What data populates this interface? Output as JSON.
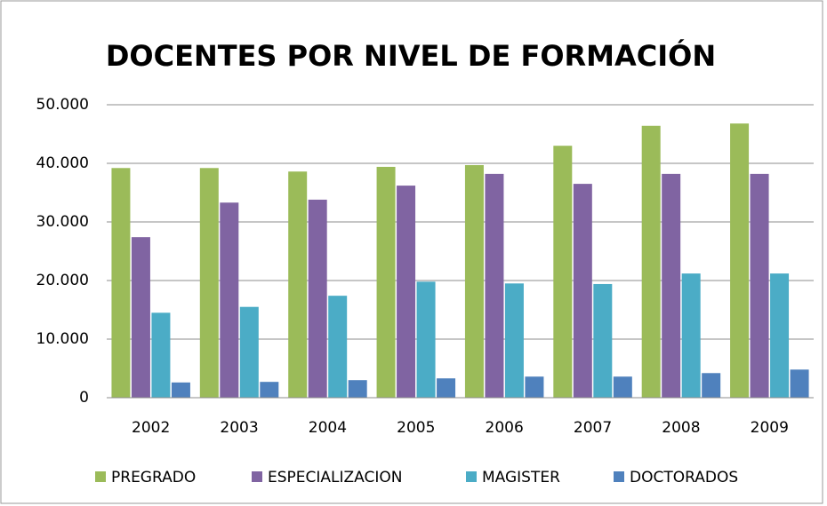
{
  "chart_data": {
    "type": "bar",
    "title": "DOCENTES POR NIVEL DE FORMACIÓN",
    "categories": [
      "2002",
      "2003",
      "2004",
      "2005",
      "2006",
      "2007",
      "2008",
      "2009"
    ],
    "series": [
      {
        "name": "PREGRADO",
        "color": "#9bbb59",
        "values": [
          39200,
          39200,
          38600,
          39400,
          39700,
          43000,
          46400,
          46800
        ]
      },
      {
        "name": "ESPECIALIZACION",
        "color": "#8064a2",
        "values": [
          27400,
          33300,
          33800,
          36200,
          38200,
          36500,
          38200,
          38200
        ]
      },
      {
        "name": "MAGISTER",
        "color": "#4bacc6",
        "values": [
          14500,
          15500,
          17400,
          19800,
          19500,
          19400,
          21200,
          21200
        ]
      },
      {
        "name": "DOCTORADOS",
        "color": "#4f81bd",
        "values": [
          2600,
          2700,
          3000,
          3300,
          3600,
          3600,
          4200,
          4800
        ]
      }
    ],
    "ylim": [
      0,
      50000
    ],
    "yticks": [
      0,
      {
        "value": 10000,
        "label": "10.000"
      },
      {
        "value": 20000,
        "label": "20.000"
      },
      {
        "value": 30000,
        "label": "30.000"
      },
      {
        "value": 40000,
        "label": "40.000"
      },
      {
        "value": 50000,
        "label": "50.000"
      }
    ],
    "grid": true,
    "legend": "bottom"
  }
}
